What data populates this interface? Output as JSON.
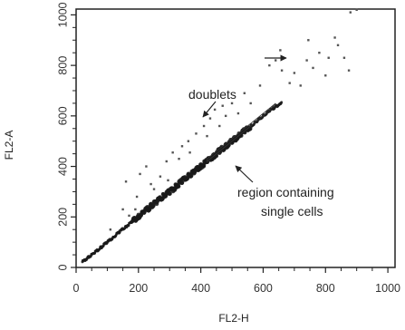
{
  "chart_data": {
    "type": "scatter",
    "title": "",
    "xlabel": "FL2-H",
    "ylabel": "FL2-A",
    "xlim": [
      0,
      1023
    ],
    "ylim": [
      0,
      1023
    ],
    "xticks": [
      0,
      200,
      400,
      600,
      800,
      1000
    ],
    "yticks": [
      0,
      200,
      400,
      600,
      800,
      1000
    ],
    "xtick_labels": [
      "0",
      "200",
      "400",
      "600",
      "800",
      "1000"
    ],
    "ytick_labels": [
      "0",
      "200",
      "400",
      "600",
      "800",
      "1000"
    ],
    "grid": false,
    "series": [
      {
        "values_description": "",
        "points": [
          [
            20,
            22
          ],
          [
            40,
            40
          ],
          [
            60,
            60
          ],
          [
            80,
            80
          ],
          [
            100,
            100
          ],
          [
            120,
            120
          ],
          [
            140,
            142
          ],
          [
            160,
            162
          ],
          [
            180,
            182
          ],
          [
            200,
            200
          ],
          [
            220,
            222
          ],
          [
            240,
            242
          ],
          [
            260,
            262
          ],
          [
            280,
            282
          ],
          [
            300,
            300
          ],
          [
            320,
            320
          ],
          [
            340,
            342
          ],
          [
            360,
            362
          ],
          [
            380,
            380
          ],
          [
            400,
            400
          ],
          [
            420,
            420
          ],
          [
            440,
            440
          ],
          [
            460,
            462
          ],
          [
            480,
            480
          ],
          [
            500,
            500
          ],
          [
            520,
            520
          ],
          [
            540,
            540
          ],
          [
            560,
            560
          ],
          [
            580,
            578
          ],
          [
            600,
            600
          ],
          [
            620,
            618
          ],
          [
            640,
            638
          ],
          [
            660,
            650
          ]
        ]
      },
      {
        "points": [
          [
            110,
            150
          ],
          [
            150,
            230
          ],
          [
            160,
            340
          ],
          [
            170,
            205
          ],
          [
            190,
            230
          ],
          [
            195,
            280
          ],
          [
            205,
            370
          ],
          [
            225,
            400
          ],
          [
            240,
            330
          ],
          [
            250,
            310
          ],
          [
            270,
            360
          ],
          [
            290,
            420
          ],
          [
            295,
            345
          ],
          [
            310,
            455
          ],
          [
            330,
            430
          ],
          [
            340,
            480
          ],
          [
            360,
            500
          ],
          [
            365,
            455
          ],
          [
            385,
            530
          ],
          [
            410,
            560
          ],
          [
            420,
            520
          ],
          [
            430,
            590
          ],
          [
            445,
            625
          ],
          [
            460,
            560
          ],
          [
            470,
            640
          ],
          [
            480,
            600
          ],
          [
            500,
            650
          ],
          [
            520,
            610
          ],
          [
            540,
            690
          ],
          [
            560,
            650
          ],
          [
            590,
            720
          ],
          [
            620,
            800
          ],
          [
            640,
            820
          ],
          [
            655,
            860
          ],
          [
            660,
            780
          ],
          [
            685,
            730
          ],
          [
            700,
            770
          ],
          [
            720,
            720
          ],
          [
            740,
            820
          ],
          [
            745,
            900
          ],
          [
            760,
            790
          ],
          [
            780,
            850
          ],
          [
            800,
            760
          ],
          [
            810,
            830
          ],
          [
            830,
            910
          ],
          [
            840,
            880
          ],
          [
            860,
            830
          ],
          [
            875,
            780
          ],
          [
            880,
            1010
          ],
          [
            900,
            1020
          ]
        ]
      }
    ],
    "annotations": [
      {
        "text": "doublets",
        "arrows": 2
      },
      {
        "text": "region containing",
        "line": 1
      },
      {
        "text": "single cells",
        "line": 2
      }
    ]
  },
  "labels": {
    "annot1": "doublets",
    "annot2_line1": "region containing",
    "annot2_line2": "single cells",
    "xlabel": "FL2-H",
    "ylabel": "FL2-A"
  }
}
